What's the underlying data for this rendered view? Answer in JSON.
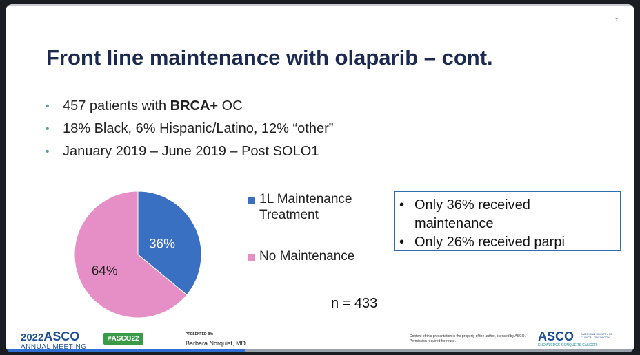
{
  "slide": {
    "number": "7",
    "title": "Front line maintenance with olaparib – cont.",
    "bullets": [
      {
        "pre": "457 patients with ",
        "bold": "BRCA+",
        "post": " OC"
      },
      {
        "pre": "18% Black, 6% Hispanic/Latino, 12% “other”",
        "bold": "",
        "post": ""
      },
      {
        "pre": "January 2019 – June 2019 – Post SOLO1",
        "bold": "",
        "post": ""
      }
    ],
    "legend": [
      {
        "line1": "1L Maintenance",
        "line2": "Treatment",
        "color": "#3a70c2"
      },
      {
        "line1": "No Maintenance",
        "line2": "",
        "color": "#e58fc6"
      }
    ],
    "info_box": {
      "line1": "Only 36% received",
      "line1b": "maintenance",
      "line2": "Only 26% received parpi",
      "bullet": "•"
    },
    "n_label": "n = 433"
  },
  "chart_data": {
    "type": "pie",
    "categories": [
      "1L Maintenance Treatment",
      "No Maintenance"
    ],
    "values": [
      36,
      64
    ],
    "labels": [
      "36%",
      "64%"
    ],
    "colors": [
      "#3a70c2",
      "#e58fc6"
    ]
  },
  "footer": {
    "year": "2022",
    "asco": "ASCO",
    "meeting": "ANNUAL MEETING",
    "hashtag": "#ASCO22",
    "presented_by_label": "PRESENTED BY:",
    "presenter": "Barbara Norquist, MD",
    "disclaimer": "Content of this presentation is the property of the author, licensed by ASCO. Permission required for reuse.",
    "asco_right": "ASCO",
    "society": "AMERICAN SOCIETY OF CLINICAL ONCOLOGY",
    "tagline": "KNOWLEDGE CONQUERS CANCER"
  },
  "progress": {
    "fraction": 0.38
  }
}
